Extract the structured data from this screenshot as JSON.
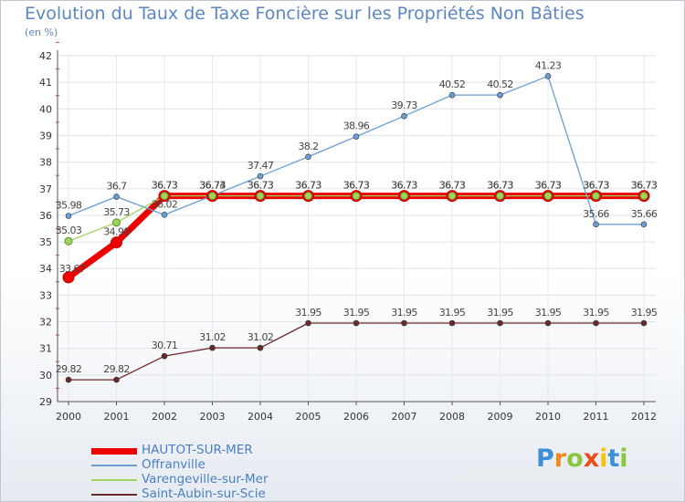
{
  "header": {
    "title": "Evolution du Taux de Taxe Foncière sur les Propriétés Non Bâties",
    "unit": "(en %)"
  },
  "logo": {
    "letters": [
      {
        "ch": "P",
        "color": "#3d8fd6"
      },
      {
        "ch": "r",
        "color": "#f08a1c"
      },
      {
        "ch": "o",
        "color": "#8cc63e"
      },
      {
        "ch": "x",
        "color": "#e94e1b"
      },
      {
        "ch": "i",
        "color": "#f5c40f"
      },
      {
        "ch": "t",
        "color": "#3d8fd6"
      },
      {
        "ch": "i",
        "color": "#8cc63e"
      }
    ]
  },
  "chart_data": {
    "type": "line",
    "title": "Evolution du Taux de Taxe Foncière sur les Propriétés Non Bâties",
    "ylabel": "(en %)",
    "xlabel": "",
    "x": [
      "2000",
      "2001",
      "2002",
      "2003",
      "2004",
      "2005",
      "2006",
      "2007",
      "2008",
      "2009",
      "2010",
      "2011",
      "2012"
    ],
    "ylim": [
      29,
      42
    ],
    "yticks": [
      "29",
      "30",
      "31",
      "32",
      "33",
      "34",
      "35",
      "36",
      "37",
      "38",
      "39",
      "40",
      "41",
      "42"
    ],
    "grid": true,
    "legend_position": "bottom-left",
    "series": [
      {
        "name": "HAUTOT-SUR-MER",
        "color": "#ee0000",
        "values": [
          33.67,
          34.98,
          36.73,
          36.73,
          36.73,
          36.73,
          36.73,
          36.73,
          36.73,
          36.73,
          36.73,
          36.73,
          36.73
        ],
        "labels": [
          "33.67",
          "34.98",
          "36.73",
          "36.73",
          "36.73",
          "36.73",
          "36.73",
          "36.73",
          "36.73",
          "36.73",
          "36.73",
          "36.73",
          "36.73"
        ]
      },
      {
        "name": "Offranville",
        "color": "#6a9fd4",
        "values": [
          35.98,
          36.7,
          36.02,
          36.74,
          37.47,
          38.2,
          38.96,
          39.73,
          40.52,
          40.52,
          41.23,
          35.66,
          35.66
        ],
        "labels": [
          "35.98",
          "36.7",
          "36.02",
          "36.74",
          "37.47",
          "38.2",
          "38.96",
          "39.73",
          "40.52",
          "40.52",
          "41.23",
          "35.66",
          "35.66"
        ]
      },
      {
        "name": "Varengeville-sur-Mer",
        "color": "#9dd45a",
        "values": [
          35.03,
          35.73,
          36.73,
          36.73,
          36.73,
          36.73,
          36.73,
          36.73,
          36.73,
          36.73,
          36.73,
          36.73,
          36.73
        ],
        "labels": [
          "35.03",
          "35.73",
          "36.73",
          "36.73",
          "36.73",
          "36.73",
          "36.73",
          "36.73",
          "36.73",
          "36.73",
          "36.73",
          "36.73",
          "36.73"
        ]
      },
      {
        "name": "Saint-Aubin-sur-Scie",
        "color": "#6b2a2a",
        "values": [
          29.82,
          29.82,
          30.71,
          31.02,
          31.02,
          31.95,
          31.95,
          31.95,
          31.95,
          31.95,
          31.95,
          31.95,
          31.95
        ],
        "labels": [
          "29.82",
          "29.82",
          "30.71",
          "31.02",
          "31.02",
          "31.95",
          "31.95",
          "31.95",
          "31.95",
          "31.95",
          "31.95",
          "31.95",
          "31.95"
        ]
      }
    ]
  }
}
